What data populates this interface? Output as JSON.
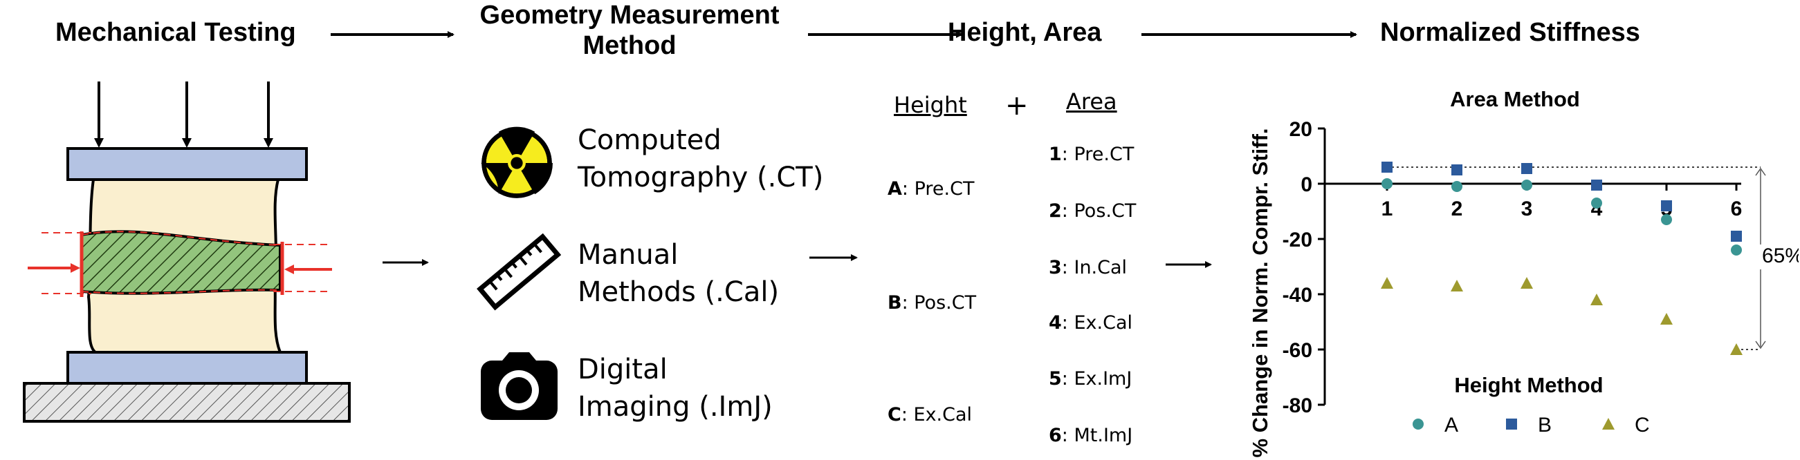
{
  "pipeline": {
    "step1": "Mechanical Testing",
    "step2_line1": "Geometry Measurement",
    "step2_line2": "Method",
    "step3": "Height, Area",
    "step4": "Normalized Stiffness"
  },
  "methods": [
    {
      "icon": "radiation-icon",
      "line1": "Computed",
      "line2": "Tomography (.CT)"
    },
    {
      "icon": "ruler-icon",
      "line1": "Manual",
      "line2": "Methods (.Cal)"
    },
    {
      "icon": "camera-icon",
      "line1": "Digital",
      "line2": "Imaging (.ImJ)"
    }
  ],
  "height_header": "Height",
  "plus": "+",
  "area_header": "Area",
  "height_options": [
    {
      "key": "A",
      "label": ": Pre.CT"
    },
    {
      "key": "B",
      "label": ": Pos.CT"
    },
    {
      "key": "C",
      "label": ": Ex.Cal"
    }
  ],
  "area_options": [
    {
      "key": "1",
      "label": ": Pre.CT"
    },
    {
      "key": "2",
      "label": ": Pos.CT"
    },
    {
      "key": "3",
      "label": ": In.Cal"
    },
    {
      "key": "4",
      "label": ": Ex.Cal"
    },
    {
      "key": "5",
      "label": ": Ex.ImJ"
    },
    {
      "key": "6",
      "label": ": Mt.ImJ"
    }
  ],
  "colors": {
    "plate": "#b4c3e3",
    "specimen": "#faefcf",
    "hatch_fill": "#93c47d",
    "red": "#e8322a",
    "series_A": "#3a9593",
    "series_B": "#2c5a9c",
    "series_C": "#9e9a2e",
    "radiation_yellow": "#f6ec1e"
  },
  "chart_data": {
    "type": "scatter",
    "title": "Area Method",
    "ylabel": "% Change in Norm. Compr. Stiff.",
    "xlabel": "",
    "legend_title": "Height Method",
    "legend_position": "bottom",
    "ylim": [
      -80,
      20
    ],
    "yticks": [
      "20",
      "0",
      "-20",
      "-40",
      "-60",
      "-80"
    ],
    "x": [
      "1",
      "2",
      "3",
      "4",
      "5",
      "6"
    ],
    "series": [
      {
        "name": "A",
        "marker": "circle",
        "values": [
          0,
          -1,
          -0.5,
          -7,
          -13,
          -24
        ]
      },
      {
        "name": "B",
        "marker": "square",
        "values": [
          6,
          5,
          5.5,
          -0.5,
          -8,
          -19
        ]
      },
      {
        "name": "C",
        "marker": "triangle",
        "values": [
          -36,
          -37,
          -36,
          -42,
          -49,
          -60
        ]
      }
    ],
    "annotation": "65%"
  }
}
